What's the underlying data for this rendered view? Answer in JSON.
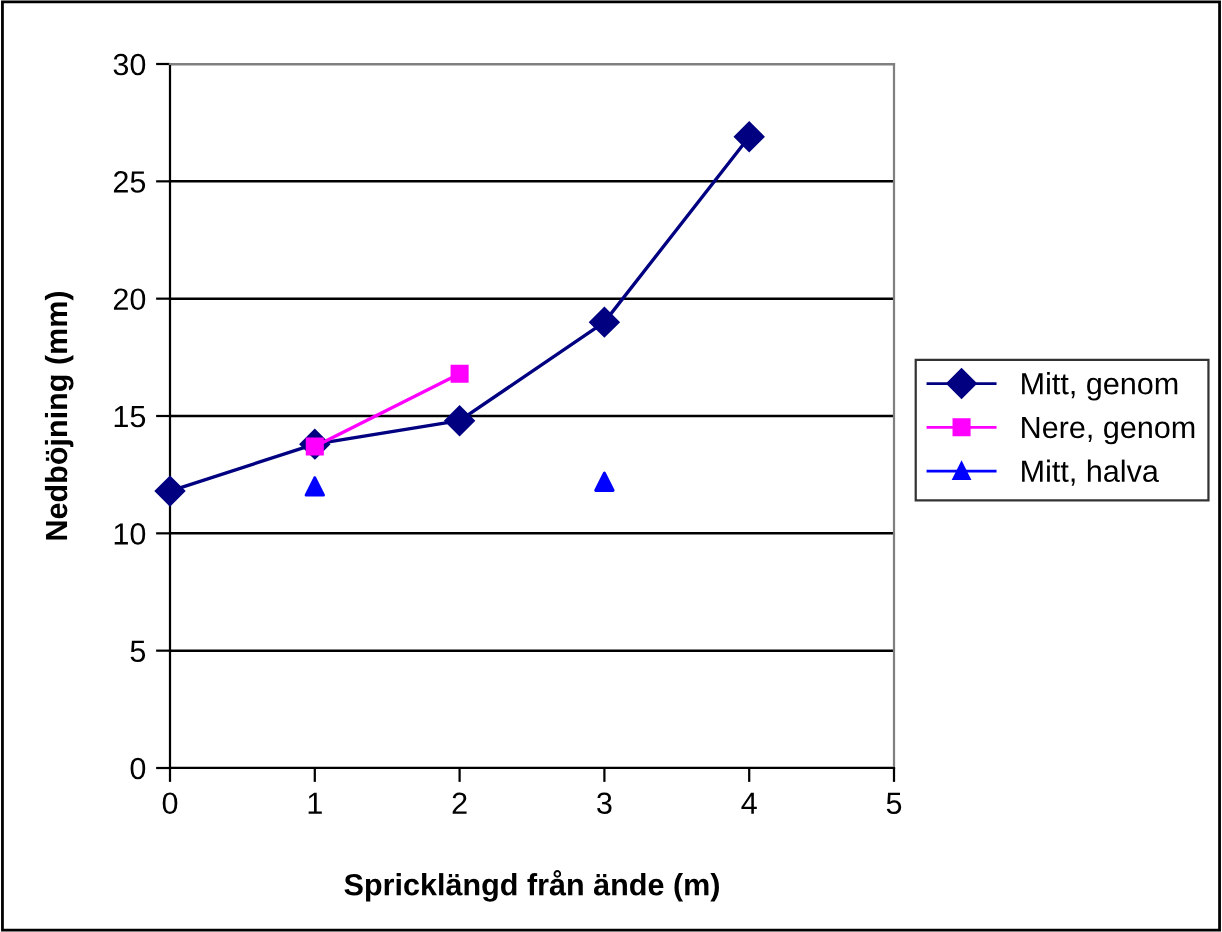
{
  "chart_data": {
    "type": "line",
    "xlabel": "Spricklängd från ände (m)",
    "ylabel": "Nedböjning (mm)",
    "xlim": [
      0,
      5
    ],
    "xticks": [
      0,
      1,
      2,
      3,
      4,
      5
    ],
    "ylim": [
      0,
      30
    ],
    "yticks": [
      0,
      5,
      10,
      15,
      20,
      25,
      30
    ],
    "grid": "y",
    "legend": "right",
    "series": [
      {
        "name": "Mitt, genom",
        "color": "#000080",
        "marker": "diamond",
        "x": [
          0,
          1,
          2,
          3,
          4
        ],
        "values": [
          11.8,
          13.8,
          14.8,
          19.0,
          26.9
        ]
      },
      {
        "name": "Nere, genom",
        "color": "#ff00ff",
        "marker": "square",
        "x": [
          1,
          2
        ],
        "values": [
          13.7,
          16.8
        ]
      },
      {
        "name": "Mitt, halva",
        "color": "#0000ff",
        "marker": "triangle",
        "type": "scatter",
        "x": [
          1,
          3
        ],
        "values": [
          12.0,
          12.2
        ]
      }
    ]
  }
}
